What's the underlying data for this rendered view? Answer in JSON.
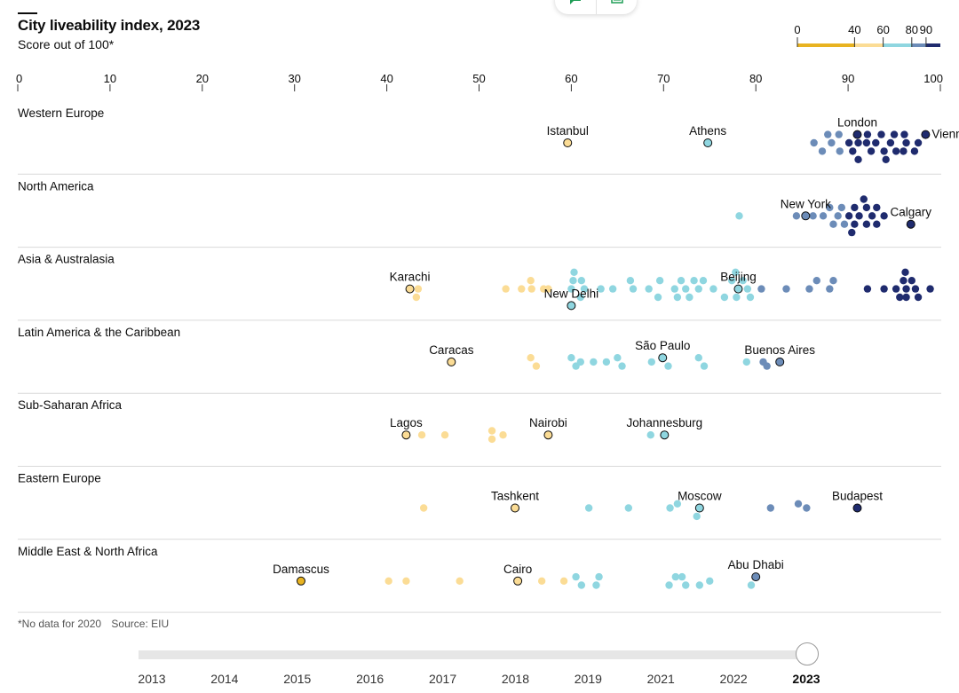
{
  "header": {
    "title": "City liveability index, 2023",
    "subtitle": "Score out of 100*"
  },
  "toolbar": {
    "left_icon": "chat-icon",
    "right_icon": "document-icon"
  },
  "legend": {
    "ticks": [
      "0",
      "40",
      "60",
      "80",
      "90"
    ],
    "scale_start": 0,
    "scale_end": 100,
    "bands": [
      {
        "from": 0,
        "to": 40,
        "color": "#e8b321"
      },
      {
        "from": 40,
        "to": 60,
        "color": "#fbdc95"
      },
      {
        "from": 60,
        "to": 80,
        "color": "#8fd6e0"
      },
      {
        "from": 80,
        "to": 90,
        "color": "#6c8cb8"
      },
      {
        "from": 90,
        "to": 100,
        "color": "#1f2b6e"
      }
    ]
  },
  "chart_data": {
    "type": "scatter",
    "title": "City liveability index, 2023",
    "subtitle": "Score out of 100*",
    "xlim": [
      0,
      100
    ],
    "xticks": [
      "0",
      "10",
      "20",
      "30",
      "40",
      "50",
      "60",
      "70",
      "80",
      "90",
      "100"
    ],
    "color_scale": [
      {
        "min": 0,
        "max": 40,
        "color": "#e8b321"
      },
      {
        "min": 40,
        "max": 60,
        "color": "#fbdc95"
      },
      {
        "min": 60,
        "max": 80,
        "color": "#8fd6e0"
      },
      {
        "min": 80,
        "max": 90,
        "color": "#6c8cb8"
      },
      {
        "min": 90,
        "max": 100,
        "color": "#1f2b6e"
      }
    ],
    "regions": [
      {
        "name": "Western Europe",
        "labelled": [
          {
            "city": "Istanbul",
            "score": 59.6,
            "offset": 0,
            "label": "above"
          },
          {
            "city": "Athens",
            "score": 74.8,
            "offset": 0,
            "label": "above"
          },
          {
            "city": "London",
            "score": 91.0,
            "offset": -1,
            "label": "above"
          },
          {
            "city": "Vienna",
            "score": 98.4,
            "offset": -1,
            "label": "right"
          }
        ],
        "others": [
          {
            "score": 86.3,
            "offset": 0
          },
          {
            "score": 87.2,
            "offset": 1
          },
          {
            "score": 88.2,
            "offset": 0
          },
          {
            "score": 89.1,
            "offset": 1
          },
          {
            "score": 90.1,
            "offset": 0
          },
          {
            "score": 87.8,
            "offset": -1
          },
          {
            "score": 89.0,
            "offset": -1
          },
          {
            "score": 90.5,
            "offset": 1
          },
          {
            "score": 91.1,
            "offset": 2
          },
          {
            "score": 92.0,
            "offset": 0
          },
          {
            "score": 92.1,
            "offset": -1
          },
          {
            "score": 92.5,
            "offset": 1
          },
          {
            "score": 93.0,
            "offset": 0
          },
          {
            "score": 93.6,
            "offset": -1
          },
          {
            "score": 93.9,
            "offset": 1
          },
          {
            "score": 94.1,
            "offset": 2
          },
          {
            "score": 94.6,
            "offset": 0
          },
          {
            "score": 95.0,
            "offset": -1
          },
          {
            "score": 95.2,
            "offset": 1
          },
          {
            "score": 96.0,
            "offset": 1
          },
          {
            "score": 96.1,
            "offset": -1
          },
          {
            "score": 96.3,
            "offset": 0
          },
          {
            "score": 97.2,
            "offset": 1
          },
          {
            "score": 97.6,
            "offset": 0
          },
          {
            "score": 91.1,
            "offset": 0
          }
        ]
      },
      {
        "name": "North America",
        "labelled": [
          {
            "city": "New York",
            "score": 85.4,
            "offset": 0,
            "label": "above"
          },
          {
            "city": "Calgary",
            "score": 96.8,
            "offset": 1,
            "label": "above"
          }
        ],
        "others": [
          {
            "score": 78.2,
            "offset": 0
          },
          {
            "score": 84.4,
            "offset": 0
          },
          {
            "score": 86.2,
            "offset": 0
          },
          {
            "score": 87.3,
            "offset": 0
          },
          {
            "score": 88.0,
            "offset": -1
          },
          {
            "score": 88.4,
            "offset": 1
          },
          {
            "score": 88.9,
            "offset": 0
          },
          {
            "score": 89.3,
            "offset": -1
          },
          {
            "score": 89.6,
            "offset": 1
          },
          {
            "score": 90.1,
            "offset": 0
          },
          {
            "score": 90.7,
            "offset": -1
          },
          {
            "score": 90.7,
            "offset": 1
          },
          {
            "score": 90.4,
            "offset": 2
          },
          {
            "score": 91.2,
            "offset": 0
          },
          {
            "score": 91.7,
            "offset": -2
          },
          {
            "score": 92.0,
            "offset": -1
          },
          {
            "score": 92.0,
            "offset": 1
          },
          {
            "score": 92.6,
            "offset": 0
          },
          {
            "score": 93.1,
            "offset": -1
          },
          {
            "score": 93.1,
            "offset": 1
          },
          {
            "score": 93.9,
            "offset": 0
          }
        ]
      },
      {
        "name": "Asia & Australasia",
        "labelled": [
          {
            "city": "Karachi",
            "score": 42.5,
            "offset": 0,
            "label": "above"
          },
          {
            "city": "New Delhi",
            "score": 60.0,
            "offset": 2,
            "label": "above"
          },
          {
            "city": "Beijing",
            "score": 78.1,
            "offset": 0,
            "label": "above"
          }
        ],
        "others": [
          {
            "score": 43.4,
            "offset": 0
          },
          {
            "score": 43.2,
            "offset": 1
          },
          {
            "score": 52.9,
            "offset": 0
          },
          {
            "score": 54.6,
            "offset": 0
          },
          {
            "score": 55.6,
            "offset": -1
          },
          {
            "score": 55.7,
            "offset": 0
          },
          {
            "score": 57.0,
            "offset": 0
          },
          {
            "score": 57.5,
            "offset": 0
          },
          {
            "score": 60.3,
            "offset": -2
          },
          {
            "score": 60.2,
            "offset": -1
          },
          {
            "score": 60.0,
            "offset": 0
          },
          {
            "score": 61.1,
            "offset": -1
          },
          {
            "score": 61.4,
            "offset": 0
          },
          {
            "score": 61.0,
            "offset": 1
          },
          {
            "score": 63.2,
            "offset": 0
          },
          {
            "score": 64.5,
            "offset": 0
          },
          {
            "score": 66.4,
            "offset": -1
          },
          {
            "score": 66.7,
            "offset": 0
          },
          {
            "score": 68.4,
            "offset": 0
          },
          {
            "score": 69.4,
            "offset": 1
          },
          {
            "score": 69.6,
            "offset": -1
          },
          {
            "score": 71.2,
            "offset": 0
          },
          {
            "score": 71.5,
            "offset": 1
          },
          {
            "score": 71.9,
            "offset": -1
          },
          {
            "score": 72.4,
            "offset": 0
          },
          {
            "score": 72.8,
            "offset": 1
          },
          {
            "score": 73.3,
            "offset": -1
          },
          {
            "score": 73.8,
            "offset": 0
          },
          {
            "score": 74.3,
            "offset": -1
          },
          {
            "score": 75.4,
            "offset": 0
          },
          {
            "score": 76.6,
            "offset": 1
          },
          {
            "score": 77.4,
            "offset": -1
          },
          {
            "score": 77.8,
            "offset": -2
          },
          {
            "score": 77.9,
            "offset": 1
          },
          {
            "score": 78.6,
            "offset": -1
          },
          {
            "score": 79.1,
            "offset": 0
          },
          {
            "score": 79.4,
            "offset": 1
          },
          {
            "score": 80.6,
            "offset": 0
          },
          {
            "score": 83.3,
            "offset": 0
          },
          {
            "score": 85.8,
            "offset": 0
          },
          {
            "score": 86.6,
            "offset": -1
          },
          {
            "score": 88.0,
            "offset": 0
          },
          {
            "score": 88.4,
            "offset": -1
          },
          {
            "score": 92.1,
            "offset": 0
          },
          {
            "score": 93.9,
            "offset": 0
          },
          {
            "score": 95.2,
            "offset": 0
          },
          {
            "score": 96.0,
            "offset": -1
          },
          {
            "score": 96.2,
            "offset": -2
          },
          {
            "score": 96.9,
            "offset": -1
          },
          {
            "score": 95.6,
            "offset": 1
          },
          {
            "score": 96.3,
            "offset": 0
          },
          {
            "score": 96.3,
            "offset": 1
          },
          {
            "score": 97.3,
            "offset": 0
          },
          {
            "score": 97.6,
            "offset": 1
          },
          {
            "score": 98.9,
            "offset": 0
          }
        ]
      },
      {
        "name": "Latin America & the Caribbean",
        "labelled": [
          {
            "city": "Caracas",
            "score": 47.0,
            "offset": 0,
            "label": "above"
          },
          {
            "city": "São Paulo",
            "score": 69.9,
            "offset": -0.5,
            "label": "above"
          },
          {
            "city": "Buenos Aires",
            "score": 82.6,
            "offset": 0,
            "label": "above"
          }
        ],
        "others": [
          {
            "score": 55.6,
            "offset": -0.5
          },
          {
            "score": 56.2,
            "offset": 0.5
          },
          {
            "score": 60.0,
            "offset": -0.5
          },
          {
            "score": 60.5,
            "offset": 0.5
          },
          {
            "score": 61.0,
            "offset": 0
          },
          {
            "score": 62.4,
            "offset": 0
          },
          {
            "score": 63.8,
            "offset": 0
          },
          {
            "score": 65.0,
            "offset": -0.5
          },
          {
            "score": 65.5,
            "offset": 0.5
          },
          {
            "score": 68.7,
            "offset": 0
          },
          {
            "score": 70.5,
            "offset": 0.5
          },
          {
            "score": 73.8,
            "offset": -0.5
          },
          {
            "score": 74.4,
            "offset": 0.5
          },
          {
            "score": 79.0,
            "offset": 0
          },
          {
            "score": 80.8,
            "offset": 0
          },
          {
            "score": 81.2,
            "offset": 0.5
          }
        ]
      },
      {
        "name": "Sub-Saharan Africa",
        "labelled": [
          {
            "city": "Lagos",
            "score": 42.1,
            "offset": 0,
            "label": "above"
          },
          {
            "city": "Nairobi",
            "score": 57.5,
            "offset": 0,
            "label": "above"
          },
          {
            "city": "Johannesburg",
            "score": 70.1,
            "offset": 0,
            "label": "above"
          }
        ],
        "others": [
          {
            "score": 43.8,
            "offset": 0
          },
          {
            "score": 46.3,
            "offset": 0
          },
          {
            "score": 51.4,
            "offset": -0.5
          },
          {
            "score": 51.4,
            "offset": 0.5
          },
          {
            "score": 52.6,
            "offset": 0
          },
          {
            "score": 68.6,
            "offset": 0
          }
        ]
      },
      {
        "name": "Eastern Europe",
        "labelled": [
          {
            "city": "Tashkent",
            "score": 53.9,
            "offset": 0,
            "label": "above"
          },
          {
            "city": "Moscow",
            "score": 73.9,
            "offset": 0,
            "label": "above"
          },
          {
            "city": "Budapest",
            "score": 91.0,
            "offset": 0,
            "label": "above"
          }
        ],
        "others": [
          {
            "score": 44.0,
            "offset": 0
          },
          {
            "score": 61.9,
            "offset": 0
          },
          {
            "score": 66.2,
            "offset": 0
          },
          {
            "score": 70.7,
            "offset": 0
          },
          {
            "score": 71.5,
            "offset": -0.5
          },
          {
            "score": 73.6,
            "offset": 1
          },
          {
            "score": 81.6,
            "offset": 0
          },
          {
            "score": 84.6,
            "offset": -0.5
          },
          {
            "score": 85.5,
            "offset": 0
          }
        ]
      },
      {
        "name": "Middle East & North Africa",
        "labelled": [
          {
            "city": "Damascus",
            "score": 30.7,
            "offset": 0,
            "label": "above"
          },
          {
            "city": "Cairo",
            "score": 54.2,
            "offset": 0,
            "label": "above"
          },
          {
            "city": "Abu Dhabi",
            "score": 80.0,
            "offset": -0.5,
            "label": "above"
          }
        ],
        "others": [
          {
            "score": 40.2,
            "offset": 0
          },
          {
            "score": 42.1,
            "offset": 0
          },
          {
            "score": 47.9,
            "offset": 0
          },
          {
            "score": 56.8,
            "offset": 0
          },
          {
            "score": 59.2,
            "offset": 0
          },
          {
            "score": 60.5,
            "offset": -0.5
          },
          {
            "score": 61.1,
            "offset": 0.5
          },
          {
            "score": 62.7,
            "offset": 0.5
          },
          {
            "score": 63.0,
            "offset": -0.5
          },
          {
            "score": 70.6,
            "offset": 0.5
          },
          {
            "score": 71.3,
            "offset": -0.5
          },
          {
            "score": 72.0,
            "offset": -0.5
          },
          {
            "score": 72.4,
            "offset": 0.5
          },
          {
            "score": 73.9,
            "offset": 0.5
          },
          {
            "score": 75.0,
            "offset": 0
          },
          {
            "score": 79.5,
            "offset": 0.5
          }
        ]
      }
    ]
  },
  "footer": {
    "note": "*No data for 2020",
    "source": "Source: EIU"
  },
  "timeline": {
    "years": [
      "2013",
      "2014",
      "2015",
      "2016",
      "2017",
      "2018",
      "2019",
      "2021",
      "2022",
      "2023"
    ],
    "selected": "2023"
  }
}
